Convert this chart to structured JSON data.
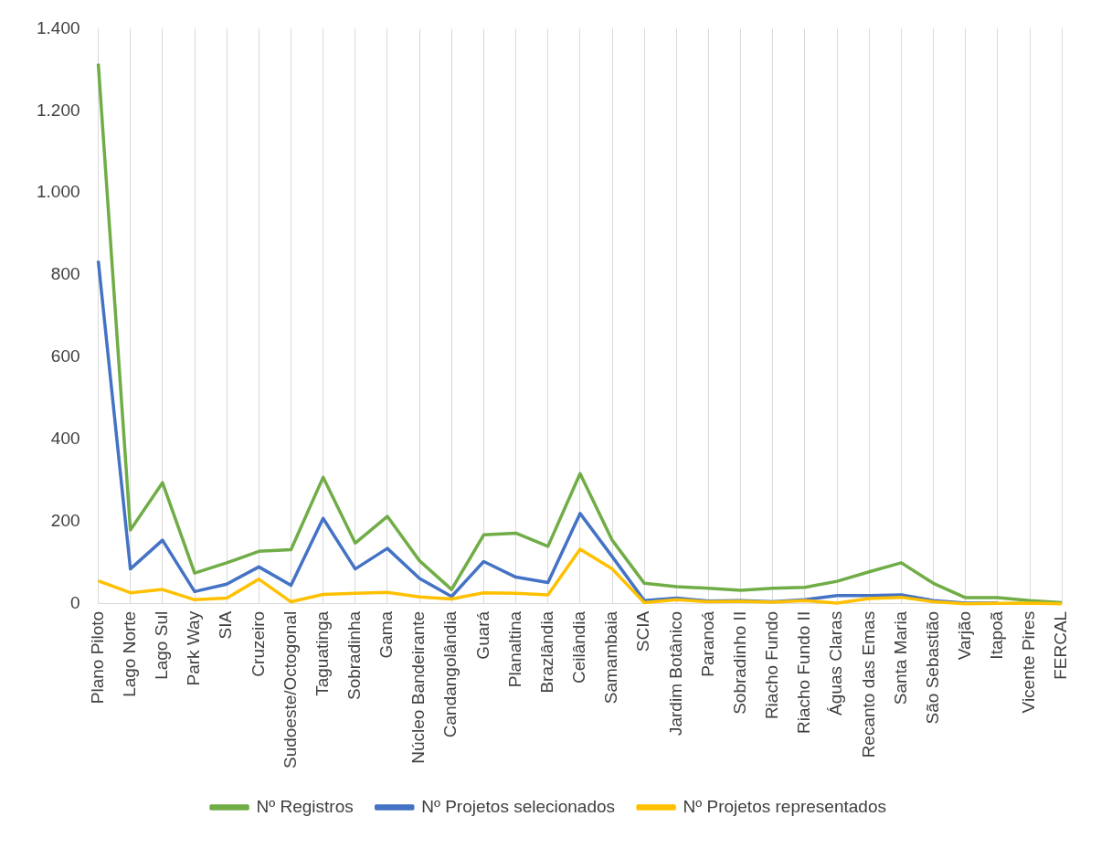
{
  "chart_data": {
    "type": "line",
    "categories": [
      "Plano Piloto",
      "Lago Norte",
      "Lago Sul",
      "Park Way",
      "SIA",
      "Cruzeiro",
      "Sudoeste/Octogonal",
      "Taguatinga",
      "Sobradinha",
      "Gama",
      "Núcleo Bandeirante",
      "Candangolândia",
      "Guará",
      "Planaltina",
      "Brazlândia",
      "Ceilândia",
      "Samambaia",
      "SCIA",
      "Jardim Botânico",
      "Paranoá",
      "Sobradinho II",
      "Riacho Fundo",
      "Riacho Fundo II",
      "Águas Claras",
      "Recanto das Emas",
      "Santa Maria",
      "São Sebastião",
      "Varjão",
      "Itapoã",
      "Vicente Pires",
      "FERCAL"
    ],
    "series": [
      {
        "name": "Nº Registros",
        "color": "#70ad47",
        "values": [
          1315,
          180,
          295,
          75,
          100,
          128,
          132,
          308,
          148,
          213,
          105,
          35,
          168,
          172,
          140,
          317,
          155,
          50,
          42,
          38,
          33,
          38,
          40,
          55,
          78,
          100,
          50,
          15,
          15,
          8,
          3
        ]
      },
      {
        "name": "Nº Projetos selecionados",
        "color": "#4472c4",
        "values": [
          835,
          85,
          155,
          30,
          48,
          90,
          45,
          208,
          85,
          135,
          62,
          18,
          103,
          65,
          52,
          220,
          115,
          8,
          14,
          7,
          8,
          5,
          10,
          20,
          20,
          22,
          8,
          2,
          2,
          null,
          null
        ]
      },
      {
        "name": "Nº Projetos representados",
        "color": "#ffc000",
        "values": [
          56,
          27,
          35,
          10,
          14,
          60,
          5,
          23,
          26,
          28,
          17,
          12,
          27,
          26,
          22,
          133,
          85,
          3,
          10,
          5,
          6,
          4,
          8,
          2,
          13,
          16,
          5,
          0,
          1,
          2,
          0
        ]
      }
    ],
    "ylim": [
      0,
      1400
    ],
    "yticks": [
      {
        "value": 0,
        "label": "0"
      },
      {
        "value": 200,
        "label": "200"
      },
      {
        "value": 400,
        "label": "400"
      },
      {
        "value": 600,
        "label": "600"
      },
      {
        "value": 800,
        "label": "800"
      },
      {
        "value": 1000,
        "label": "1.000"
      },
      {
        "value": 1200,
        "label": "1.200"
      },
      {
        "value": 1400,
        "label": "1.400"
      }
    ],
    "grid": "x",
    "legend": "bottom",
    "marker": "none",
    "line_style": "solid"
  }
}
